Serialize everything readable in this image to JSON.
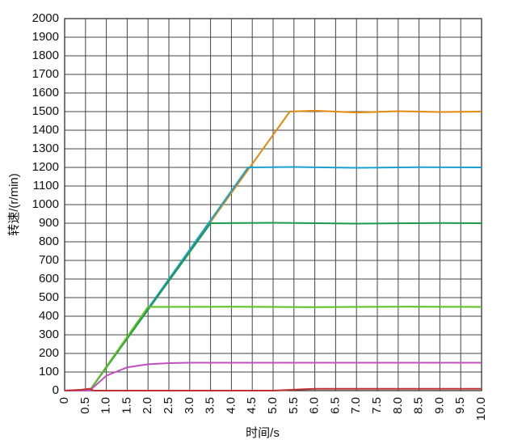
{
  "chart_data": {
    "type": "line",
    "x_label": "时间/s",
    "y_label": "转速/(r/min)",
    "xlim": [
      0,
      10
    ],
    "ylim": [
      0,
      2000
    ],
    "xticks": [
      0,
      0.5,
      {
        "value": 1,
        "label": "1.0"
      },
      1.5,
      {
        "value": 2,
        "label": "2.0"
      },
      2.5,
      {
        "value": 3,
        "label": "3.0"
      },
      3.5,
      {
        "value": 4,
        "label": "4.0"
      },
      4.5,
      {
        "value": 5,
        "label": "5.0"
      },
      5.5,
      {
        "value": 6,
        "label": "6.0"
      },
      6.5,
      {
        "value": 7,
        "label": "7.0"
      },
      7.5,
      {
        "value": 8,
        "label": "8.0"
      },
      8.5,
      {
        "value": 9,
        "label": "9.0"
      },
      9.5,
      {
        "value": 10,
        "label": "10.0"
      }
    ],
    "yticks": [
      0,
      100,
      200,
      300,
      400,
      500,
      600,
      700,
      800,
      900,
      1000,
      1100,
      1200,
      1300,
      1400,
      1500,
      1600,
      1700,
      1800,
      1900,
      2000
    ],
    "grid": true,
    "series": [
      {
        "color": "#e08a10",
        "x": [
          0,
          0.6,
          5.4,
          6.0,
          7.0,
          8.0,
          9.0,
          10.0
        ],
        "values": [
          0,
          0,
          1500,
          1505,
          1495,
          1502,
          1498,
          1500
        ]
      },
      {
        "color": "#1aa0d0",
        "x": [
          0,
          0.6,
          4.4,
          5.5,
          7.0,
          8.5,
          10.0
        ],
        "values": [
          0,
          0,
          1200,
          1202,
          1198,
          1201,
          1200
        ]
      },
      {
        "color": "#1a9a4a",
        "x": [
          0,
          0.6,
          3.5,
          5.0,
          7.0,
          9.0,
          10.0
        ],
        "values": [
          0,
          0,
          900,
          902,
          898,
          901,
          900
        ]
      },
      {
        "color": "#5cc020",
        "x": [
          0,
          0.6,
          2.0,
          4.0,
          6.0,
          8.0,
          10.0
        ],
        "values": [
          0,
          0,
          450,
          451,
          449,
          451,
          450
        ]
      },
      {
        "color": "#c050c0",
        "x": [
          0,
          0.6,
          1.0,
          1.5,
          2.0,
          2.5,
          3.0,
          10.0
        ],
        "values": [
          0,
          0,
          80,
          125,
          142,
          148,
          150,
          150
        ]
      },
      {
        "color": "#c03030",
        "x": [
          0,
          0.4,
          0.6,
          0.7,
          5.0,
          6.0,
          10.0
        ],
        "values": [
          0,
          5,
          10,
          0,
          0,
          10,
          10
        ]
      }
    ]
  }
}
